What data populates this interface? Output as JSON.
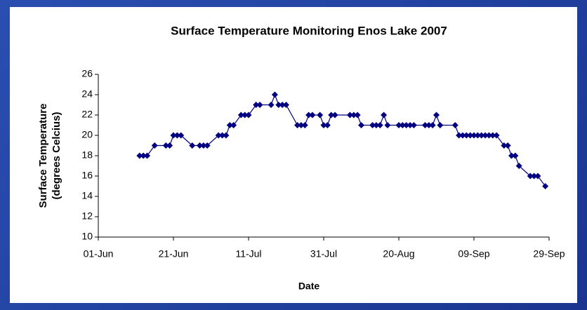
{
  "chart_data": {
    "type": "line",
    "title": "Surface Temperature Monitoring Enos Lake 2007",
    "xlabel": "Date",
    "ylabel": [
      "Surface Temperature",
      "(degrees Celcius)"
    ],
    "color": "#000080",
    "marker": "diamond",
    "grid": false,
    "xlim": [
      "01-Jun",
      "29-Sep"
    ],
    "xticks": [
      "01-Jun",
      "21-Jun",
      "11-Jul",
      "31-Jul",
      "20-Aug",
      "09-Sep",
      "29-Sep"
    ],
    "ylim": [
      10,
      26
    ],
    "yticks": [
      10,
      12,
      14,
      16,
      18,
      20,
      22,
      24,
      26
    ],
    "x": [
      "12-Jun",
      "13-Jun",
      "14-Jun",
      "16-Jun",
      "19-Jun",
      "20-Jun",
      "21-Jun",
      "22-Jun",
      "23-Jun",
      "26-Jun",
      "28-Jun",
      "29-Jun",
      "30-Jun",
      "03-Jul",
      "04-Jul",
      "05-Jul",
      "06-Jul",
      "07-Jul",
      "09-Jul",
      "10-Jul",
      "11-Jul",
      "13-Jul",
      "14-Jul",
      "17-Jul",
      "18-Jul",
      "19-Jul",
      "20-Jul",
      "21-Jul",
      "24-Jul",
      "25-Jul",
      "26-Jul",
      "27-Jul",
      "28-Jul",
      "30-Jul",
      "31-Jul",
      "01-Aug",
      "02-Aug",
      "03-Aug",
      "07-Aug",
      "08-Aug",
      "09-Aug",
      "10-Aug",
      "13-Aug",
      "14-Aug",
      "15-Aug",
      "16-Aug",
      "17-Aug",
      "20-Aug",
      "21-Aug",
      "22-Aug",
      "23-Aug",
      "24-Aug",
      "27-Aug",
      "28-Aug",
      "29-Aug",
      "30-Aug",
      "31-Aug",
      "04-Sep",
      "05-Sep",
      "06-Sep",
      "07-Sep",
      "08-Sep",
      "09-Sep",
      "10-Sep",
      "11-Sep",
      "12-Sep",
      "13-Sep",
      "14-Sep",
      "15-Sep",
      "17-Sep",
      "18-Sep",
      "19-Sep",
      "20-Sep",
      "21-Sep",
      "24-Sep",
      "25-Sep",
      "26-Sep",
      "28-Sep"
    ],
    "values": [
      18,
      18,
      18,
      19,
      19,
      19,
      20,
      20,
      20,
      19,
      19,
      19,
      19,
      20,
      20,
      20,
      21,
      21,
      22,
      22,
      22,
      23,
      23,
      23,
      24,
      23,
      23,
      23,
      21,
      21,
      21,
      22,
      22,
      22,
      21,
      21,
      22,
      22,
      22,
      22,
      22,
      21,
      21,
      21,
      21,
      22,
      21,
      21,
      21,
      21,
      21,
      21,
      21,
      21,
      21,
      22,
      21,
      21,
      20,
      20,
      20,
      20,
      20,
      20,
      20,
      20,
      20,
      20,
      20,
      19,
      19,
      18,
      18,
      17,
      16,
      16,
      16,
      15
    ]
  }
}
